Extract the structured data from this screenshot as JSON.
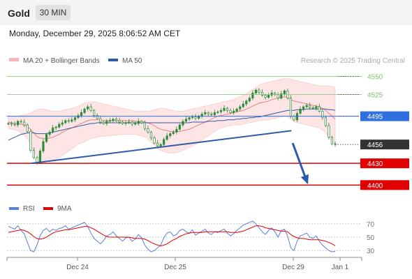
{
  "header": {
    "title": "Gold",
    "timeframe": "30 MIN"
  },
  "datetime": "Monday, December 29, 2025 8:06:52 AM CET",
  "legend": {
    "ma20_bb": "MA 20 + Bollinger Bands",
    "ma50": "MA 50",
    "credit": "Research © 2025 Trading Central"
  },
  "indicator_legend": {
    "rsi": "RSI",
    "ma9": "9MA"
  },
  "colors": {
    "bollinger": "#f8b4b4",
    "ma20": "#e88080",
    "ma50": "#2e5aa8",
    "support": "#e00000",
    "resistance": "#7ac46c",
    "pivot": "#2f6fe0",
    "current": "#333333",
    "rsi": "#5b7fd6",
    "rsi_ma": "#e00000",
    "candle": "#2e8b3a"
  },
  "chart_data": [
    {
      "type": "line",
      "title": "Gold",
      "x_ticks": [
        "Dec 24",
        "Dec 25",
        "Dec 29",
        "Jan 1"
      ],
      "y_ticks": [
        "4550",
        "4525",
        "4495",
        "4456",
        "4430",
        "4400"
      ],
      "ylim": [
        4383,
        4563
      ],
      "levels": [
        {
          "label": "4550",
          "value": 4550,
          "role": "resistance"
        },
        {
          "label": "4525",
          "value": 4525,
          "role": "resistance"
        },
        {
          "label": "4495",
          "value": 4495,
          "role": "pivot"
        },
        {
          "label": "4456",
          "value": 4456,
          "role": "current"
        },
        {
          "label": "4430",
          "value": 4430,
          "role": "support"
        },
        {
          "label": "4400",
          "value": 4400,
          "role": "support"
        }
      ],
      "trendline": [
        [
          0.07,
          4430
        ],
        [
          0.866,
          4475
        ]
      ],
      "forecast_arrow": [
        [
          0.87,
          4458
        ],
        [
          0.915,
          4403
        ]
      ],
      "price": [
        4485,
        4484,
        4483,
        4488,
        4487,
        4483,
        4474,
        4448,
        4438,
        4431,
        4447,
        4460,
        4470,
        4473,
        4479,
        4480,
        4484,
        4486,
        4489,
        4488,
        4490,
        4493,
        4496,
        4500,
        4505,
        4508,
        4503,
        4496,
        4492,
        4487,
        4485,
        4488,
        4489,
        4491,
        4489,
        4487,
        4485,
        4486,
        4487,
        4484,
        4485,
        4488,
        4486,
        4478,
        4473,
        4465,
        4458,
        4454,
        4456,
        4463,
        4468,
        4471,
        4473,
        4477,
        4483,
        4488,
        4491,
        4493,
        4494,
        4492,
        4495,
        4498,
        4500,
        4498,
        4497,
        4500,
        4501,
        4503,
        4506,
        4503,
        4500,
        4502,
        4505,
        4508,
        4512,
        4516,
        4520,
        4527,
        4531,
        4528,
        4524,
        4521,
        4524,
        4527,
        4525,
        4520,
        4526,
        4530,
        4520,
        4495,
        4490,
        4499,
        4505,
        4508,
        4510,
        4507,
        4506,
        4508,
        4502,
        4493,
        4482,
        4466,
        4457,
        4456
      ],
      "ma20": [
        4487,
        4486,
        4485,
        4485,
        4484,
        4483,
        4481,
        4477,
        4472,
        4467,
        4465,
        4464,
        4464,
        4465,
        4466,
        4468,
        4470,
        4473,
        4475,
        4477,
        4479,
        4481,
        4483,
        4485,
        4487,
        4489,
        4490,
        4490,
        4490,
        4490,
        4489,
        4489,
        4489,
        4489,
        4489,
        4489,
        4489,
        4489,
        4489,
        4489,
        4488,
        4488,
        4488,
        4487,
        4486,
        4484,
        4482,
        4479,
        4477,
        4476,
        4475,
        4474,
        4474,
        4474,
        4474,
        4475,
        4476,
        4477,
        4479,
        4481,
        4483,
        4485,
        4487,
        4489,
        4491,
        4493,
        4495,
        4496,
        4497,
        4498,
        4499,
        4500,
        4501,
        4502,
        4503,
        4505,
        4507,
        4509,
        4511,
        4513,
        4514,
        4515,
        4516,
        4518,
        4519,
        4520,
        4521,
        4522,
        4521,
        4518,
        4516,
        4515,
        4514,
        4513,
        4512,
        4511,
        4510,
        4509,
        4508,
        4506,
        4503,
        4499,
        4495,
        4491
      ],
      "ma50": [
        4462,
        4464,
        4466,
        4468,
        4470,
        4471,
        4472,
        4472,
        4472,
        4471,
        4471,
        4471,
        4471,
        4472,
        4473,
        4474,
        4475,
        4476,
        4477,
        4478,
        4479,
        4480,
        4481,
        4482,
        4483,
        4484,
        4485,
        4485,
        4486,
        4486,
        4486,
        4486,
        4486,
        4486,
        4486,
        4486,
        4486,
        4486,
        4486,
        4486,
        4486,
        4486,
        4486,
        4486,
        4486,
        4486,
        4486,
        4486,
        4486,
        4486,
        4486,
        4486,
        4486,
        4486,
        4486,
        4486,
        4486,
        4486,
        4487,
        4487,
        4487,
        4487,
        4487,
        4488,
        4488,
        4488,
        4489,
        4489,
        4489,
        4490,
        4490,
        4490,
        4491,
        4491,
        4492,
        4492,
        4493,
        4493,
        4494,
        4494,
        4495,
        4496,
        4497,
        4498,
        4499,
        4500,
        4501,
        4502,
        4503,
        4503,
        4503,
        4504,
        4504,
        4504,
        4505,
        4505,
        4505,
        4505,
        4505,
        4505,
        4505,
        4504,
        4504,
        4503
      ],
      "bb_upper": [
        4496,
        4495,
        4494,
        4495,
        4496,
        4497,
        4498,
        4500,
        4502,
        4504,
        4505,
        4505,
        4504,
        4503,
        4502,
        4502,
        4502,
        4503,
        4504,
        4505,
        4506,
        4507,
        4509,
        4511,
        4513,
        4514,
        4515,
        4515,
        4514,
        4513,
        4512,
        4511,
        4510,
        4509,
        4508,
        4507,
        4506,
        4505,
        4504,
        4503,
        4502,
        4502,
        4502,
        4502,
        4502,
        4503,
        4504,
        4505,
        4506,
        4506,
        4505,
        4504,
        4503,
        4502,
        4502,
        4502,
        4503,
        4504,
        4505,
        4506,
        4507,
        4508,
        4509,
        4510,
        4511,
        4512,
        4513,
        4514,
        4515,
        4516,
        4517,
        4518,
        4520,
        4522,
        4524,
        4526,
        4529,
        4532,
        4535,
        4538,
        4540,
        4541,
        4542,
        4543,
        4544,
        4545,
        4546,
        4547,
        4547,
        4546,
        4545,
        4544,
        4543,
        4542,
        4541,
        4540,
        4539,
        4538,
        4537,
        4537,
        4537,
        4537,
        4536,
        4535
      ],
      "bb_lower": [
        4478,
        4477,
        4476,
        4475,
        4472,
        4469,
        4464,
        4455,
        4446,
        4440,
        4436,
        4434,
        4433,
        4433,
        4434,
        4436,
        4438,
        4441,
        4444,
        4447,
        4450,
        4453,
        4456,
        4458,
        4460,
        4462,
        4464,
        4465,
        4466,
        4467,
        4467,
        4468,
        4468,
        4469,
        4469,
        4470,
        4470,
        4470,
        4470,
        4470,
        4470,
        4469,
        4468,
        4466,
        4463,
        4459,
        4455,
        4451,
        4448,
        4446,
        4445,
        4444,
        4444,
        4445,
        4446,
        4448,
        4450,
        4452,
        4454,
        4456,
        4459,
        4462,
        4465,
        4468,
        4471,
        4474,
        4477,
        4479,
        4480,
        4481,
        4482,
        4483,
        4483,
        4483,
        4484,
        4485,
        4486,
        4487,
        4488,
        4489,
        4489,
        4490,
        4490,
        4491,
        4492,
        4493,
        4494,
        4495,
        4494,
        4491,
        4488,
        4486,
        4485,
        4484,
        4483,
        4482,
        4481,
        4480,
        4479,
        4476,
        4472,
        4466,
        4460,
        4455
      ]
    },
    {
      "type": "line",
      "title": "RSI",
      "x_ticks": [
        "Dec 24",
        "Dec 25",
        "Dec 29",
        "Jan 1"
      ],
      "y_ticks": [
        "70",
        "50",
        "30"
      ],
      "ylim": [
        25,
        75
      ],
      "series": [
        {
          "name": "RSI",
          "values": [
            66,
            64,
            62,
            67,
            60,
            55,
            42,
            30,
            28,
            38,
            52,
            60,
            63,
            58,
            62,
            60,
            63,
            64,
            67,
            62,
            64,
            66,
            68,
            70,
            72,
            66,
            56,
            48,
            44,
            40,
            45,
            52,
            54,
            58,
            52,
            48,
            44,
            49,
            50,
            44,
            47,
            54,
            49,
            38,
            32,
            28,
            30,
            34,
            38,
            49,
            56,
            58,
            52,
            54,
            60,
            62,
            58,
            56,
            61,
            53,
            56,
            59,
            62,
            56,
            54,
            58,
            57,
            60,
            62,
            56,
            52,
            55,
            60,
            64,
            68,
            70,
            72,
            74,
            70,
            64,
            58,
            54,
            60,
            64,
            58,
            50,
            60,
            62,
            52,
            34,
            30,
            44,
            52,
            54,
            56,
            50,
            48,
            52,
            44,
            38,
            34,
            30,
            28,
            29
          ]
        },
        {
          "name": "9MA",
          "values": [
            57,
            58,
            59,
            60,
            61,
            60,
            58,
            55,
            51,
            48,
            47,
            48,
            50,
            53,
            56,
            58,
            59,
            60,
            61,
            61,
            62,
            63,
            64,
            65,
            66,
            66,
            64,
            62,
            59,
            56,
            53,
            51,
            50,
            50,
            50,
            50,
            50,
            50,
            50,
            49,
            48,
            48,
            48,
            47,
            45,
            42,
            40,
            38,
            37,
            38,
            40,
            43,
            46,
            48,
            51,
            53,
            55,
            56,
            57,
            57,
            57,
            57,
            58,
            58,
            58,
            58,
            58,
            58,
            58,
            58,
            57,
            57,
            57,
            58,
            59,
            61,
            63,
            65,
            67,
            67,
            66,
            64,
            63,
            62,
            61,
            60,
            59,
            59,
            58,
            54,
            51,
            49,
            48,
            48,
            47,
            46,
            46,
            46,
            46,
            45,
            44,
            42,
            40,
            37
          ]
        }
      ]
    }
  ]
}
